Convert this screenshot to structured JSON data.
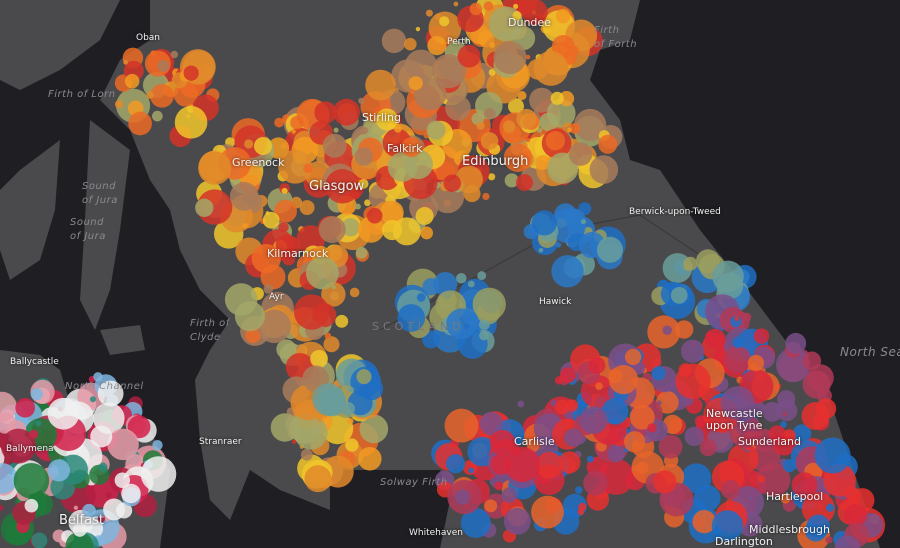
{
  "map": {
    "colors": {
      "sea": "#1f1e23",
      "land": "#4a4a4c",
      "splatter_scotland": [
        "#f0c52a",
        "#ec6a25",
        "#f29a22",
        "#a3a768",
        "#d43328",
        "#a87b5a",
        "#e08a2a"
      ],
      "splatter_blue": [
        "#1f6fc4",
        "#2a78c8",
        "#6a9e9a",
        "#9a9e5e"
      ],
      "splatter_england": [
        "#e8302e",
        "#d9283a",
        "#7a4f88",
        "#1f6fc4",
        "#b03a58",
        "#e8642a"
      ],
      "splatter_ni": [
        "#d4204a",
        "#1e7a3a",
        "#7fb6df",
        "#e59aa8",
        "#f0f0f0",
        "#2a8a7a",
        "#b02040"
      ]
    },
    "cities": {
      "oban": "Oban",
      "perth": "Perth",
      "dundee": "Dundee",
      "stirling": "Stirling",
      "greenock": "Greenock",
      "falkirk": "Falkirk",
      "edinburgh": "Edinburgh",
      "glasgow": "Glasgow",
      "kilmarnock": "Kilmarnock",
      "ayr": "Ayr",
      "berwick": "Berwick-upon-Tweed",
      "hawick": "Hawick",
      "ballycastle": "Ballycastle",
      "ballymena": "Ballymena",
      "belfast": "Belfast",
      "stranraer": "Stranraer",
      "carlisle": "Carlisle",
      "whitehaven": "Whitehaven",
      "newcastle": "Newcastle\nupon Tyne",
      "sunderland": "Sunderland",
      "hartlepool": "Hartlepool",
      "middlesbrough": "Middlesbrough",
      "darlington": "Darlington"
    },
    "water": {
      "firth_of_lorn": "Firth of Lorn",
      "sound_of_jura_1": "Sound\nof Jura",
      "sound_of_jura_2": "Sound\nof Jura",
      "firth_of_forth": "Firth\nof Forth",
      "firth_of_clyde": "Firth of\nClyde",
      "north_channel": "North Channel",
      "solway_firth": "Solway Firth",
      "north_sea": "North Sea"
    },
    "region": "SCOTLAND"
  }
}
